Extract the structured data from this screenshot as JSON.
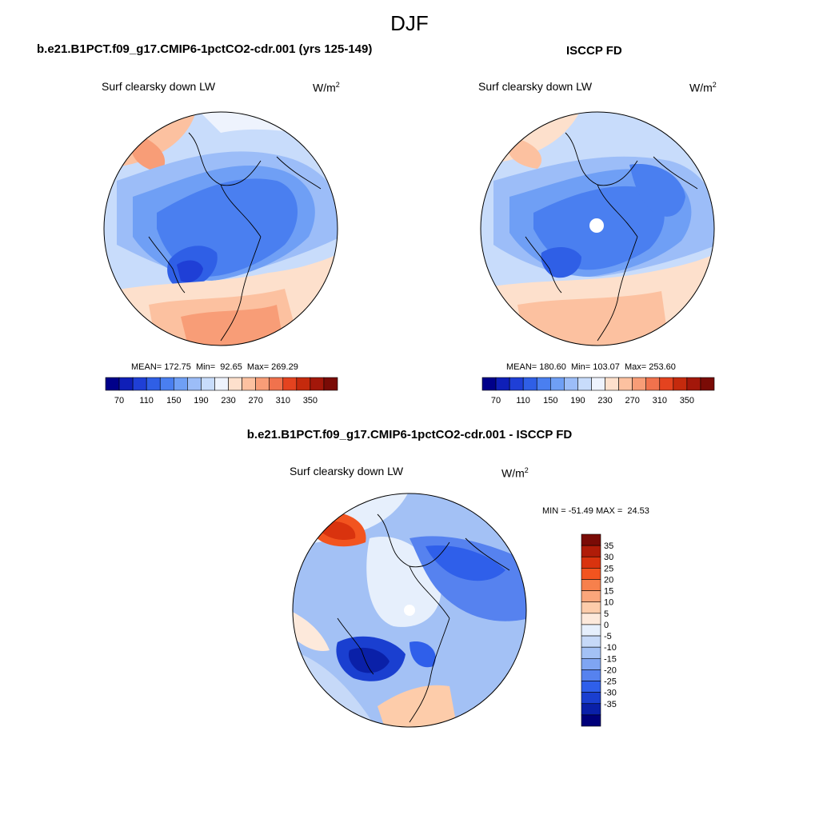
{
  "figure": {
    "title": "DJF",
    "variable_label": "Surf clearsky down LW",
    "units_base": "W/m",
    "units_exp": "2"
  },
  "panels": {
    "model": {
      "title": "b.e21.B1PCT.f09_g17.CMIP6-1pctCO2-cdr.001 (yrs 125-149)",
      "stats": "MEAN= 172.75  Min=  92.65  Max= 269.29"
    },
    "obs": {
      "title": "ISCCP FD",
      "stats": "MEAN= 180.60  Min= 103.07  Max= 253.60"
    },
    "diff": {
      "title": "b.e21.B1PCT.f09_g17.CMIP6-1pctCO2-cdr.001 - ISCCP FD",
      "stats": "MIN = -51.49 MAX =  24.53"
    }
  },
  "chart_data": [
    {
      "type": "heatmap",
      "projection": "polar stereographic (north polar)",
      "title": "b.e21.B1PCT.f09_g17.CMIP6-1pctCO2-cdr.001 (yrs 125-149)",
      "variable": "Surf clearsky down LW",
      "units": "W/m2",
      "stats": {
        "mean": 172.75,
        "min": 92.65,
        "max": 269.29
      },
      "colorbar": {
        "orientation": "horizontal",
        "levels": [
          70,
          90,
          110,
          130,
          150,
          170,
          190,
          210,
          230,
          250,
          270,
          290,
          310,
          330,
          350
        ],
        "tick_labels": [
          "70",
          "110",
          "150",
          "190",
          "230",
          "270",
          "310",
          "350"
        ],
        "colors": [
          "#00008a",
          "#0f1fb8",
          "#1f3fd6",
          "#2f5fe6",
          "#4a7ff0",
          "#6f9ff5",
          "#9cbdf8",
          "#c8dcfb",
          "#eef3fd",
          "#fde0cc",
          "#fcc1a0",
          "#f89d77",
          "#f0724d",
          "#e4431f",
          "#c52a0d",
          "#a3170a",
          "#7a0b06"
        ]
      }
    },
    {
      "type": "heatmap",
      "projection": "polar stereographic (north polar)",
      "title": "ISCCP FD",
      "variable": "Surf clearsky down LW",
      "units": "W/m2",
      "stats": {
        "mean": 180.6,
        "min": 103.07,
        "max": 253.6
      },
      "colorbar": {
        "orientation": "horizontal",
        "levels": [
          70,
          90,
          110,
          130,
          150,
          170,
          190,
          210,
          230,
          250,
          270,
          290,
          310,
          330,
          350
        ],
        "tick_labels": [
          "70",
          "110",
          "150",
          "190",
          "230",
          "270",
          "310",
          "350"
        ],
        "colors": [
          "#00008a",
          "#0f1fb8",
          "#1f3fd6",
          "#2f5fe6",
          "#4a7ff0",
          "#6f9ff5",
          "#9cbdf8",
          "#c8dcfb",
          "#eef3fd",
          "#fde0cc",
          "#fcc1a0",
          "#f89d77",
          "#f0724d",
          "#e4431f",
          "#c52a0d",
          "#a3170a",
          "#7a0b06"
        ]
      }
    },
    {
      "type": "heatmap",
      "projection": "polar stereographic (north polar)",
      "title": "b.e21.B1PCT.f09_g17.CMIP6-1pctCO2-cdr.001 - ISCCP FD",
      "variable": "Surf clearsky down LW",
      "units": "W/m2",
      "stats": {
        "min": -51.49,
        "max": 24.53
      },
      "colorbar": {
        "orientation": "vertical",
        "levels": [
          35,
          30,
          25,
          20,
          15,
          10,
          5,
          0,
          -5,
          -10,
          -15,
          -20,
          -25,
          -30,
          -35
        ],
        "tick_labels": [
          "35",
          "30",
          "25",
          "20",
          "15",
          "10",
          "5",
          "0",
          "-5",
          "-10",
          "-15",
          "-20",
          "-25",
          "-30",
          "-35"
        ],
        "colors": [
          "#7a0b06",
          "#b01c08",
          "#d9330e",
          "#f2541f",
          "#f7804c",
          "#fba67b",
          "#fdccaa",
          "#fde9db",
          "#e6effc",
          "#c6d9f8",
          "#a3c1f5",
          "#7fa5f2",
          "#5682ef",
          "#2f5fea",
          "#1a3fd0",
          "#0a20a8",
          "#00007a"
        ]
      }
    }
  ]
}
